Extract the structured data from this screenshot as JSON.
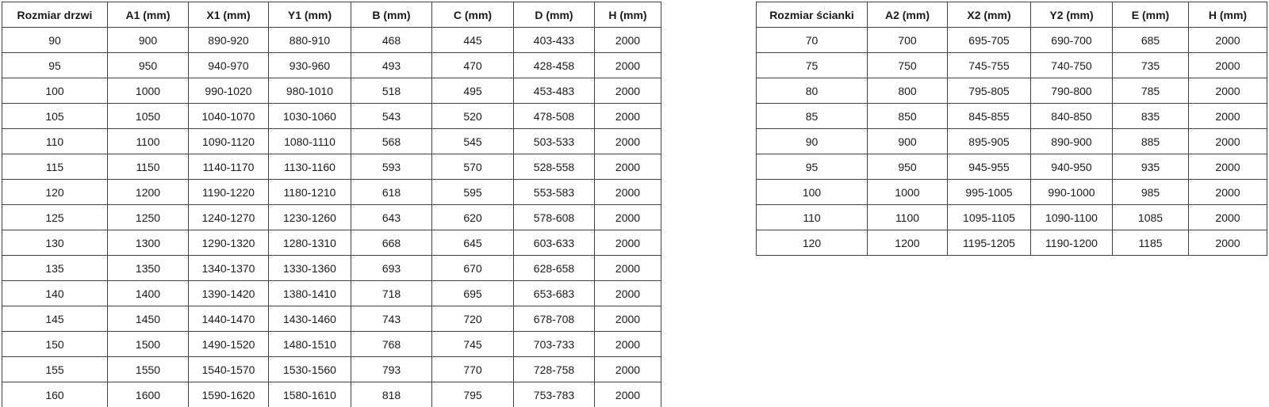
{
  "colors": {
    "background": "#ffffff",
    "border": "#404040",
    "text": "#1a1a1a"
  },
  "door_table": {
    "title": "door-size-table",
    "headers": [
      "Rozmiar drzwi",
      "A1 (mm)",
      "X1 (mm)",
      "Y1 (mm)",
      "B (mm)",
      "C (mm)",
      "D (mm)",
      "H (mm)"
    ],
    "rows": [
      [
        "90",
        "900",
        "890-920",
        "880-910",
        "468",
        "445",
        "403-433",
        "2000"
      ],
      [
        "95",
        "950",
        "940-970",
        "930-960",
        "493",
        "470",
        "428-458",
        "2000"
      ],
      [
        "100",
        "1000",
        "990-1020",
        "980-1010",
        "518",
        "495",
        "453-483",
        "2000"
      ],
      [
        "105",
        "1050",
        "1040-1070",
        "1030-1060",
        "543",
        "520",
        "478-508",
        "2000"
      ],
      [
        "110",
        "1100",
        "1090-1120",
        "1080-1110",
        "568",
        "545",
        "503-533",
        "2000"
      ],
      [
        "115",
        "1150",
        "1140-1170",
        "1130-1160",
        "593",
        "570",
        "528-558",
        "2000"
      ],
      [
        "120",
        "1200",
        "1190-1220",
        "1180-1210",
        "618",
        "595",
        "553-583",
        "2000"
      ],
      [
        "125",
        "1250",
        "1240-1270",
        "1230-1260",
        "643",
        "620",
        "578-608",
        "2000"
      ],
      [
        "130",
        "1300",
        "1290-1320",
        "1280-1310",
        "668",
        "645",
        "603-633",
        "2000"
      ],
      [
        "135",
        "1350",
        "1340-1370",
        "1330-1360",
        "693",
        "670",
        "628-658",
        "2000"
      ],
      [
        "140",
        "1400",
        "1390-1420",
        "1380-1410",
        "718",
        "695",
        "653-683",
        "2000"
      ],
      [
        "145",
        "1450",
        "1440-1470",
        "1430-1460",
        "743",
        "720",
        "678-708",
        "2000"
      ],
      [
        "150",
        "1500",
        "1490-1520",
        "1480-1510",
        "768",
        "745",
        "703-733",
        "2000"
      ],
      [
        "155",
        "1550",
        "1540-1570",
        "1530-1560",
        "793",
        "770",
        "728-758",
        "2000"
      ],
      [
        "160",
        "1600",
        "1590-1620",
        "1580-1610",
        "818",
        "795",
        "753-783",
        "2000"
      ]
    ]
  },
  "wall_table": {
    "title": "wall-size-table",
    "headers": [
      "Rozmiar ścianki",
      "A2 (mm)",
      "X2 (mm)",
      "Y2 (mm)",
      "E (mm)",
      "H (mm)"
    ],
    "rows": [
      [
        "70",
        "700",
        "695-705",
        "690-700",
        "685",
        "2000"
      ],
      [
        "75",
        "750",
        "745-755",
        "740-750",
        "735",
        "2000"
      ],
      [
        "80",
        "800",
        "795-805",
        "790-800",
        "785",
        "2000"
      ],
      [
        "85",
        "850",
        "845-855",
        "840-850",
        "835",
        "2000"
      ],
      [
        "90",
        "900",
        "895-905",
        "890-900",
        "885",
        "2000"
      ],
      [
        "95",
        "950",
        "945-955",
        "940-950",
        "935",
        "2000"
      ],
      [
        "100",
        "1000",
        "995-1005",
        "990-1000",
        "985",
        "2000"
      ],
      [
        "110",
        "1100",
        "1095-1105",
        "1090-1100",
        "1085",
        "2000"
      ],
      [
        "120",
        "1200",
        "1195-1205",
        "1190-1200",
        "1185",
        "2000"
      ]
    ]
  }
}
